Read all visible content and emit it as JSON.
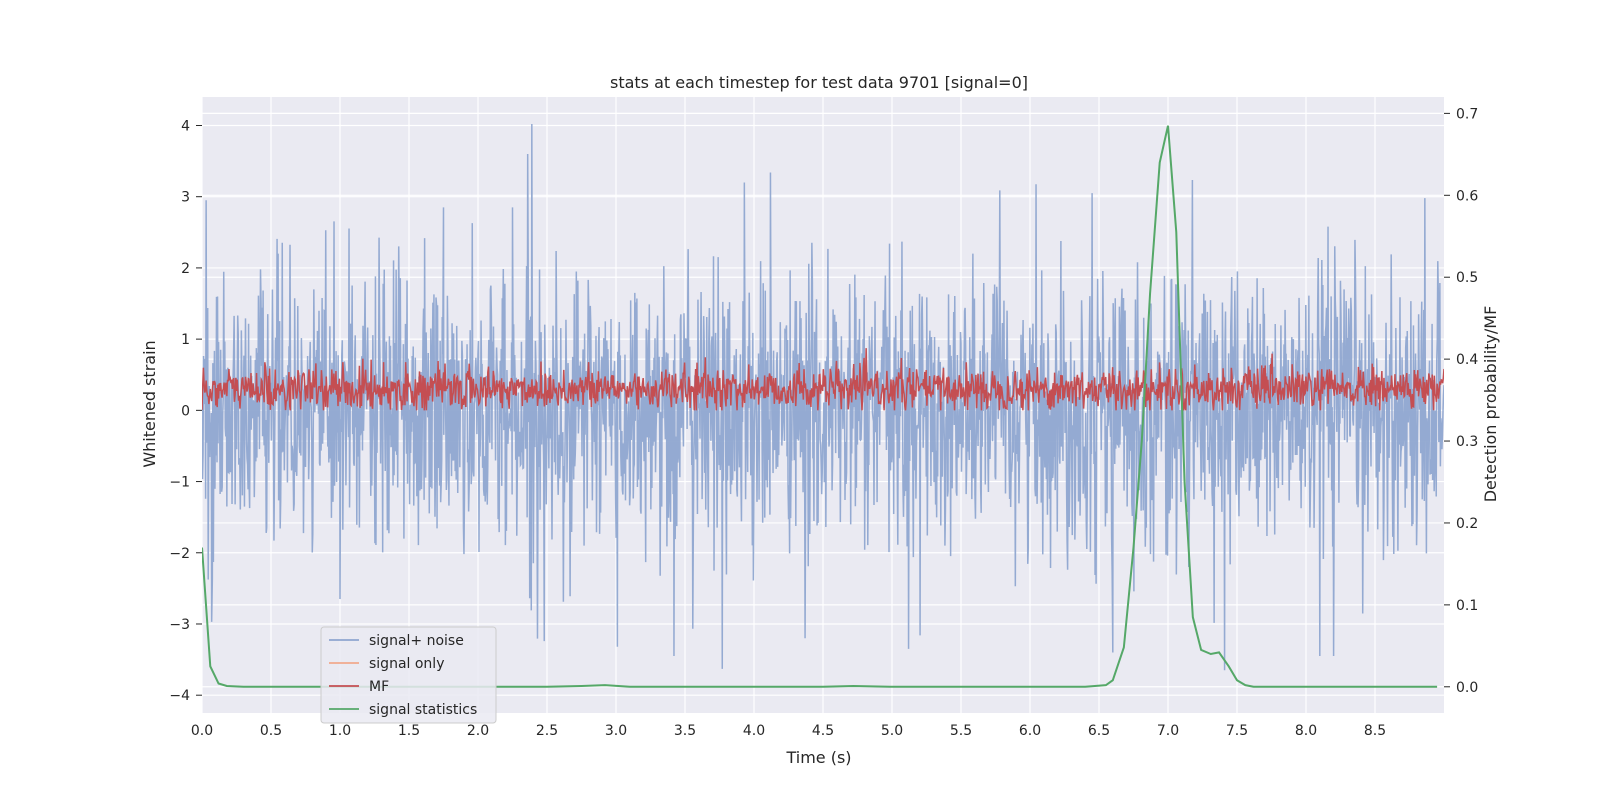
{
  "chart_data": {
    "type": "line",
    "title": "stats at each timestep for test data 9701 [signal=0]",
    "xlabel": "Time (s)",
    "ylabel_left": "Whitened strain",
    "ylabel_right": "Detection probability/MF",
    "xlim": [
      0.0,
      9.0
    ],
    "ylim_left": [
      -4.25,
      4.4
    ],
    "ylim_right": [
      -0.032,
      0.72
    ],
    "xticks": [
      "0.0",
      "0.5",
      "1.0",
      "1.5",
      "2.0",
      "2.5",
      "3.0",
      "3.5",
      "4.0",
      "4.5",
      "5.0",
      "5.5",
      "6.0",
      "6.5",
      "7.0",
      "7.5",
      "8.0",
      "8.5"
    ],
    "yticks_left": [
      "4",
      "3",
      "2",
      "1",
      "0",
      "−1",
      "−2",
      "−3",
      "−4"
    ],
    "yticks_right": [
      "0.7",
      "0.6",
      "0.5",
      "0.4",
      "0.3",
      "0.2",
      "0.1",
      "0.0"
    ],
    "grid": true,
    "legend_position": "lower-left",
    "series": [
      {
        "name": "signal+ noise",
        "axis": "left",
        "color": "#8fa6d0",
        "noise_envelope": {
          "typical_upper": 1.6,
          "typical_lower": -1.6,
          "max": 4.0,
          "min": -3.65
        },
        "peaks": [
          [
            0.03,
            2.95
          ],
          [
            1.75,
            2.85
          ],
          [
            2.25,
            2.85
          ],
          [
            2.36,
            3.6
          ],
          [
            2.39,
            4.02
          ],
          [
            3.93,
            3.2
          ],
          [
            6.45,
            3.05
          ],
          [
            0.07,
            -2.97
          ],
          [
            1.0,
            -2.65
          ],
          [
            2.48,
            -3.24
          ],
          [
            3.01,
            -3.32
          ],
          [
            3.42,
            -3.45
          ],
          [
            3.77,
            -3.63
          ],
          [
            4.37,
            -3.2
          ],
          [
            5.12,
            -3.35
          ],
          [
            6.6,
            -3.4
          ],
          [
            8.1,
            -3.45
          ],
          [
            8.2,
            -3.45
          ],
          [
            7.41,
            -3.65
          ]
        ]
      },
      {
        "name": "signal only",
        "axis": "left",
        "color": "#f0a98c",
        "values": []
      },
      {
        "name": "MF",
        "axis": "left",
        "color": "#c44e52",
        "band": {
          "center": 0.3,
          "typical_low": 0.05,
          "typical_high": 0.6,
          "max": 1.0,
          "min": 0.0
        }
      },
      {
        "name": "signal statistics",
        "axis": "right",
        "color": "#55a868",
        "x": [
          0.0,
          0.06,
          0.12,
          0.18,
          0.3,
          0.5,
          1.0,
          1.5,
          2.0,
          2.5,
          2.75,
          2.92,
          3.1,
          3.5,
          4.0,
          4.5,
          4.72,
          5.0,
          5.5,
          6.0,
          6.4,
          6.55,
          6.6,
          6.68,
          6.75,
          6.81,
          6.87,
          6.94,
          7.0,
          7.06,
          7.12,
          7.18,
          7.24,
          7.31,
          7.37,
          7.44,
          7.5,
          7.56,
          7.62,
          7.68,
          7.8,
          8.0,
          8.5,
          8.95
        ],
        "y": [
          0.17,
          0.025,
          0.004,
          0.001,
          0.0,
          0.0,
          0.0,
          0.0,
          0.0,
          0.0,
          0.001,
          0.002,
          0.0,
          0.0,
          0.0,
          0.0,
          0.001,
          0.0,
          0.0,
          0.0,
          0.0,
          0.002,
          0.008,
          0.048,
          0.17,
          0.3,
          0.48,
          0.64,
          0.685,
          0.555,
          0.25,
          0.085,
          0.045,
          0.04,
          0.042,
          0.025,
          0.008,
          0.002,
          0.0,
          0.0,
          0.0,
          0.0,
          0.0,
          0.0
        ]
      }
    ]
  }
}
